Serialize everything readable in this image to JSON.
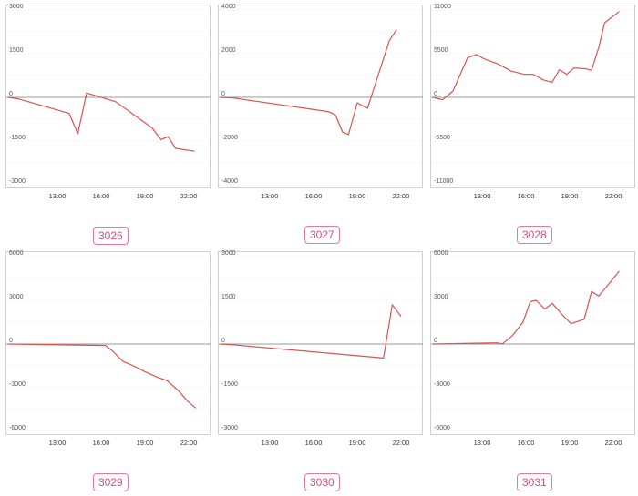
{
  "colors": {
    "line": "#d9534f",
    "grid": "#e3e3e3",
    "zero": "#9a9a9a",
    "badge": "#d94f78"
  },
  "chart_data": [
    {
      "type": "line",
      "label": "3026",
      "x_ticks": [
        "13:00",
        "16:00",
        "19:00",
        "22:00"
      ],
      "x_ticks_pos": [
        13,
        16,
        19,
        22
      ],
      "xlim": [
        9.5,
        23.5
      ],
      "ylim": [
        -3000,
        3000
      ],
      "y_ticks": [
        3000,
        1500,
        0,
        -1500,
        -3000
      ],
      "y_tick_labels": [
        "3000",
        "1500",
        "0",
        "-1500",
        "-3000"
      ],
      "series": [
        {
          "x": [
            9.6,
            10.3,
            13.8,
            14.4,
            15.0,
            17.0,
            19.5,
            20.1,
            20.6,
            21.1,
            22.4
          ],
          "y": [
            0,
            -50,
            -550,
            -1250,
            150,
            -150,
            -1050,
            -1450,
            -1350,
            -1750,
            -1850
          ]
        }
      ]
    },
    {
      "type": "line",
      "label": "3027",
      "x_ticks": [
        "13:00",
        "16:00",
        "19:00",
        "22:00"
      ],
      "x_ticks_pos": [
        13,
        16,
        19,
        22
      ],
      "xlim": [
        9.5,
        23.5
      ],
      "ylim": [
        -4000,
        4000
      ],
      "y_ticks": [
        4000,
        2000,
        0,
        -2000,
        -4000
      ],
      "y_tick_labels": [
        "4000",
        "2000",
        "0",
        "-2000",
        "-4000"
      ],
      "series": [
        {
          "x": [
            9.6,
            10.5,
            17.0,
            17.5,
            18.0,
            18.4,
            19.0,
            19.7,
            21.2,
            21.7
          ],
          "y": [
            0,
            -30,
            -650,
            -800,
            -1600,
            -1700,
            -250,
            -500,
            2600,
            3100
          ]
        }
      ]
    },
    {
      "type": "line",
      "label": "3028",
      "x_ticks": [
        "13:00",
        "16:00",
        "19:00",
        "22:00"
      ],
      "x_ticks_pos": [
        13,
        16,
        19,
        22
      ],
      "xlim": [
        9.5,
        23.5
      ],
      "ylim": [
        -11000,
        11000
      ],
      "y_ticks": [
        11000,
        5500,
        0,
        -5500,
        -11000
      ],
      "y_tick_labels": [
        "11000",
        "5500",
        "0",
        "-5500",
        "-11000"
      ],
      "series": [
        {
          "x": [
            9.6,
            10.3,
            11.0,
            12.0,
            12.6,
            13.2,
            14.1,
            15.0,
            15.9,
            16.5,
            17.2,
            17.8,
            18.3,
            18.8,
            19.3,
            20.1,
            20.5,
            21.0,
            21.4,
            22.4
          ],
          "y": [
            0,
            -300,
            800,
            5000,
            5400,
            4800,
            4200,
            3300,
            2900,
            2900,
            2200,
            1900,
            3500,
            2900,
            3700,
            3600,
            3400,
            6300,
            9400,
            10800
          ]
        }
      ]
    },
    {
      "type": "line",
      "label": "3029",
      "x_ticks": [
        "13:00",
        "16:00",
        "19:00",
        "22:00"
      ],
      "x_ticks_pos": [
        13,
        16,
        19,
        22
      ],
      "xlim": [
        9.5,
        23.5
      ],
      "ylim": [
        -6000,
        6000
      ],
      "y_ticks": [
        6000,
        3000,
        0,
        -3000,
        -6000
      ],
      "y_tick_labels": [
        "6000",
        "3000",
        "0",
        "-3000",
        "-6000"
      ],
      "series": [
        {
          "x": [
            9.6,
            16.3,
            16.8,
            17.5,
            18.0,
            19.0,
            19.9,
            20.5,
            21.3,
            21.9,
            22.5
          ],
          "y": [
            0,
            -100,
            -500,
            -1200,
            -1400,
            -1900,
            -2300,
            -2500,
            -3200,
            -3900,
            -4400
          ]
        }
      ]
    },
    {
      "type": "line",
      "label": "3030",
      "x_ticks": [
        "13:00",
        "16:00",
        "19:00",
        "22:00"
      ],
      "x_ticks_pos": [
        13,
        16,
        19,
        22
      ],
      "xlim": [
        9.5,
        23.5
      ],
      "ylim": [
        -3000,
        3000
      ],
      "y_ticks": [
        3000,
        1500,
        0,
        -1500,
        -3000
      ],
      "y_tick_labels": [
        "3000",
        "1500",
        "0",
        "-1500",
        "-3000"
      ],
      "series": [
        {
          "x": [
            9.6,
            10.3,
            20.8,
            21.4,
            22.0
          ],
          "y": [
            0,
            -20,
            -480,
            1350,
            950
          ]
        }
      ]
    },
    {
      "type": "line",
      "label": "3031",
      "x_ticks": [
        "13:00",
        "16:00",
        "19:00",
        "22:00"
      ],
      "x_ticks_pos": [
        13,
        16,
        19,
        22
      ],
      "xlim": [
        9.5,
        23.5
      ],
      "ylim": [
        -6000,
        6000
      ],
      "y_ticks": [
        6000,
        3000,
        0,
        -3000,
        -6000
      ],
      "y_tick_labels": [
        "6000",
        "3000",
        "0",
        "-3000",
        "-6000"
      ],
      "series": [
        {
          "x": [
            9.6,
            13.0,
            14.0,
            14.4,
            15.1,
            15.8,
            16.3,
            16.7,
            17.3,
            17.8,
            18.6,
            19.1,
            20.0,
            20.5,
            21.0,
            21.5,
            22.4
          ],
          "y": [
            0,
            60,
            80,
            20,
            600,
            1500,
            2900,
            3000,
            2400,
            2800,
            1900,
            1400,
            1700,
            3600,
            3300,
            3900,
            5000
          ]
        }
      ]
    }
  ]
}
